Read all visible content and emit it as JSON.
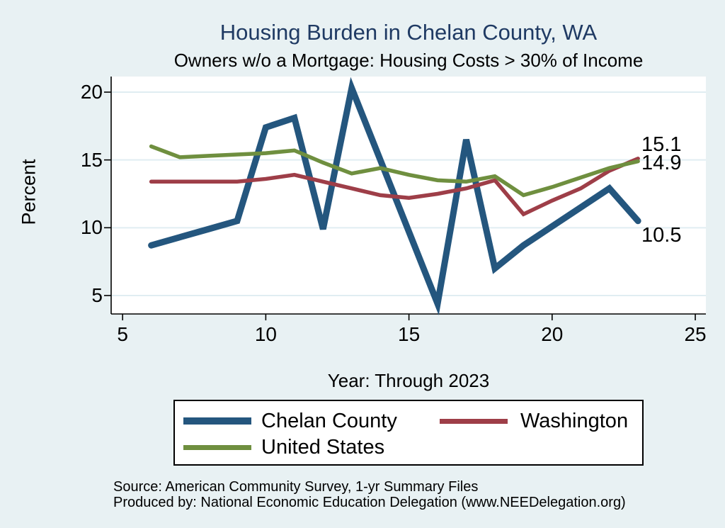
{
  "page": {
    "background": "#e8f1f3"
  },
  "header": {
    "title": "Housing Burden in Chelan County, WA",
    "subtitle": "Owners w/o a Mortgage: Housing Costs > 30% of Income"
  },
  "chart_data": {
    "type": "line",
    "title": "Housing Burden in Chelan County, WA",
    "subtitle": "Owners w/o a Mortgage: Housing Costs > 30% of Income",
    "xlabel": "Year: Through 2023",
    "ylabel": "Percent",
    "x": [
      6,
      7,
      8,
      9,
      10,
      11,
      12,
      13,
      14,
      15,
      16,
      17,
      18,
      19,
      20,
      21,
      22,
      23
    ],
    "series": [
      {
        "name": "Chelan County",
        "color": "#24567e",
        "line_width": 9,
        "values": [
          8.7,
          9.3,
          9.9,
          10.5,
          17.4,
          18.1,
          9.9,
          20.3,
          15.0,
          9.7,
          4.4,
          16.5,
          7.0,
          8.7,
          10.1,
          11.5,
          12.9,
          10.5
        ]
      },
      {
        "name": "Washington",
        "color": "#9e3e48",
        "line_width": 5.5,
        "values": [
          13.4,
          13.4,
          13.4,
          13.4,
          13.6,
          13.9,
          13.4,
          12.9,
          12.4,
          12.2,
          12.5,
          12.9,
          13.5,
          11.0,
          12.0,
          12.9,
          14.2,
          15.1
        ]
      },
      {
        "name": "United States",
        "color": "#6f8f3f",
        "line_width": 5.5,
        "values": [
          16.0,
          15.2,
          15.3,
          15.4,
          15.5,
          15.7,
          14.8,
          14.0,
          14.4,
          13.9,
          13.5,
          13.4,
          13.8,
          12.4,
          13.0,
          13.7,
          14.4,
          14.9
        ]
      }
    ],
    "x_ticks": [
      5,
      10,
      15,
      20,
      25
    ],
    "y_ticks": [
      5,
      10,
      15,
      20
    ],
    "xlim": [
      4.6,
      25.37
    ],
    "ylim": [
      3.64,
      21.15
    ],
    "grid": "horizontal",
    "grid_color": "#e0edf2",
    "plot_bg": "#ffffff",
    "axis_color": "#000000",
    "legend_position": "bottom"
  },
  "annotations": {
    "end_labels": [
      {
        "text": "15.1"
      },
      {
        "text": "14.9"
      },
      {
        "text": "10.5"
      }
    ]
  },
  "footer": {
    "source": "Source: American Community Survey, 1-yr Summary Files",
    "produced_by": "Produced by: National Economic Education Delegation (www.NEEDelegation.org)"
  }
}
